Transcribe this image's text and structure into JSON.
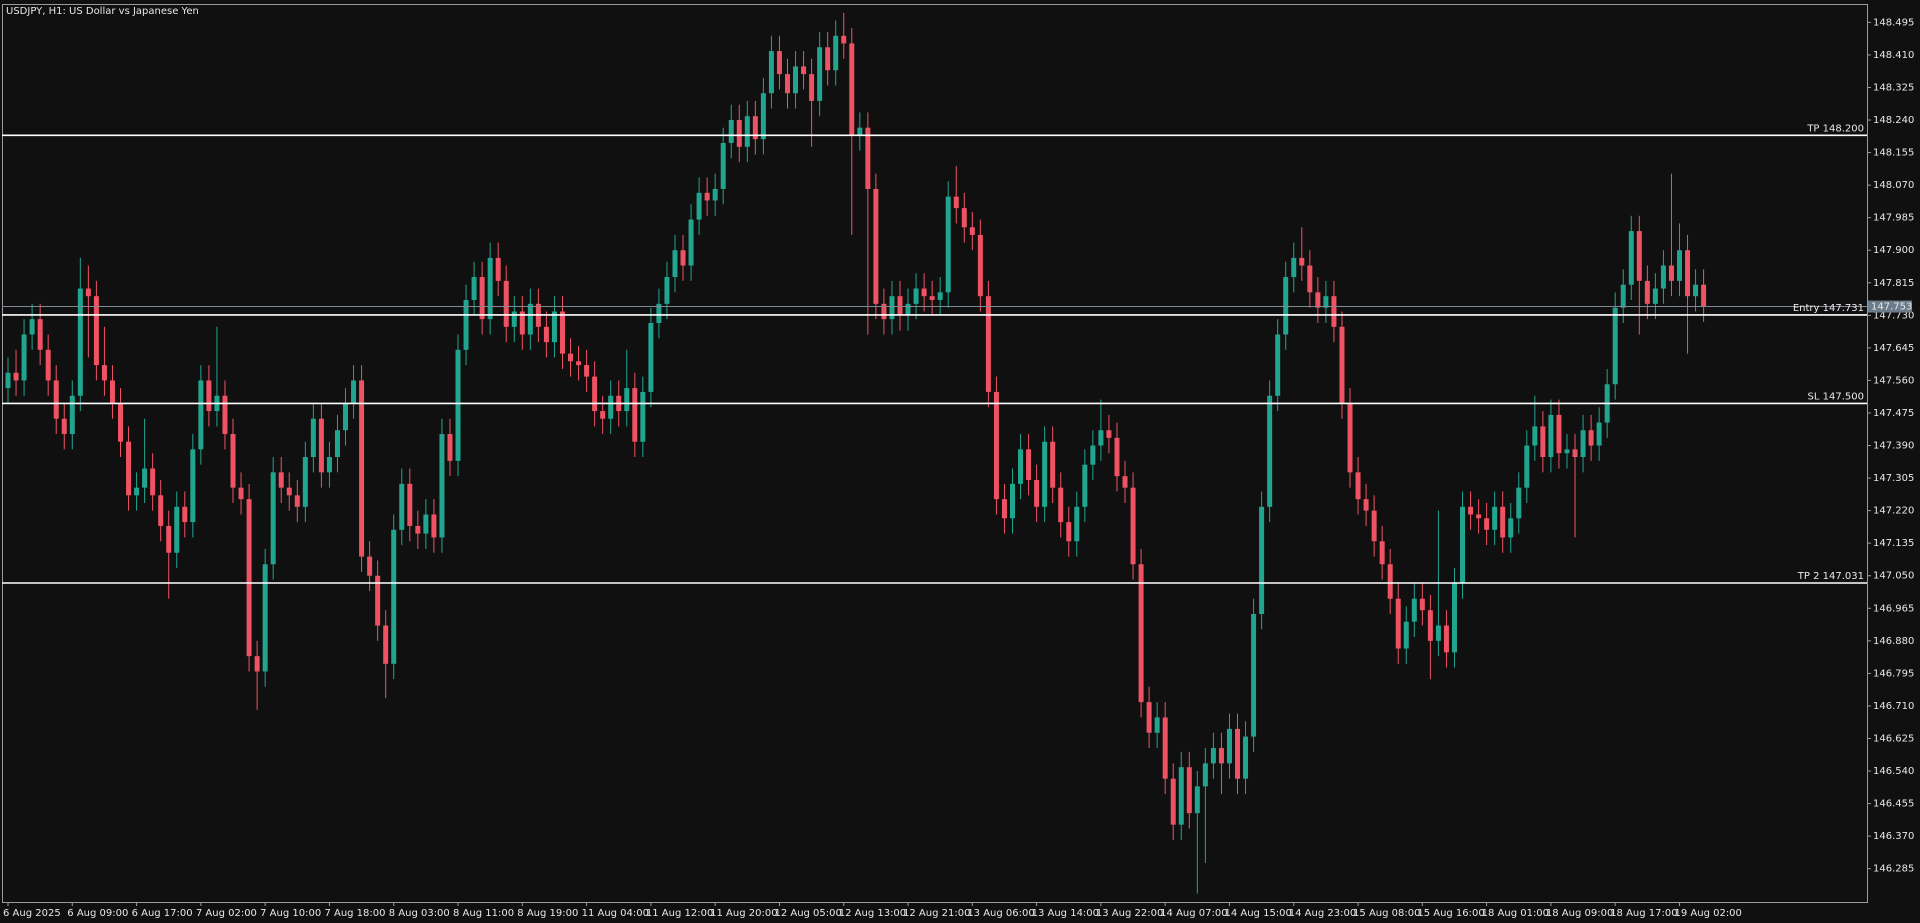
{
  "chart_data": {
    "type": "candlestick",
    "title": "USDJPY, H1:  US Dollar vs Japanese Yen",
    "up_color": "#22a58f",
    "down_color": "#ef5363",
    "ylim": [
      146.198,
      148.543
    ],
    "yticks": [
      148.495,
      {
        "value": 148.41,
        "label": "148.410"
      },
      148.325,
      {
        "value": 148.24,
        "label": "148.240"
      },
      148.155,
      {
        "value": 148.07,
        "label": "148.070"
      },
      147.985,
      {
        "value": 147.9,
        "label": "147.900"
      },
      147.815,
      {
        "value": 147.73,
        "label": "147.730"
      },
      147.645,
      {
        "value": 147.56,
        "label": "147.560"
      },
      147.475,
      {
        "value": 147.39,
        "label": "147.390"
      },
      147.305,
      {
        "value": 147.22,
        "label": "147.220"
      },
      147.135,
      {
        "value": 147.05,
        "label": "147.050"
      },
      146.965,
      {
        "value": 146.88,
        "label": "146.880"
      },
      146.795,
      {
        "value": 146.71,
        "label": "146.710"
      },
      146.625,
      {
        "value": 146.54,
        "label": "146.540"
      },
      146.455,
      {
        "value": 146.37,
        "label": "146.370"
      },
      146.285
    ],
    "grid": false,
    "levels": [
      {
        "label": "TP 148.200",
        "value": 148.2
      },
      {
        "label": "Entry 147.731",
        "value": 147.731
      },
      {
        "label": "SL 147.500",
        "value": 147.5
      },
      {
        "label": "TP 2 147.031",
        "value": 147.031
      }
    ],
    "current_price": 147.753,
    "categories": [
      "6 Aug 2025",
      null,
      null,
      null,
      null,
      null,
      null,
      null,
      "6 Aug 09:00",
      null,
      null,
      null,
      null,
      null,
      null,
      null,
      "6 Aug 17:00",
      null,
      null,
      null,
      null,
      null,
      null,
      null,
      "7 Aug 02:00",
      null,
      null,
      null,
      null,
      null,
      null,
      null,
      "7 Aug 10:00",
      null,
      null,
      null,
      null,
      null,
      null,
      null,
      "7 Aug 18:00",
      null,
      null,
      null,
      null,
      null,
      null,
      null,
      "8 Aug 03:00",
      null,
      null,
      null,
      null,
      null,
      null,
      null,
      "8 Aug 11:00",
      null,
      null,
      null,
      null,
      null,
      null,
      null,
      "8 Aug 19:00",
      null,
      null,
      null,
      null,
      null,
      null,
      null,
      "11 Aug 04:00",
      null,
      null,
      null,
      null,
      null,
      null,
      null,
      "11 Aug 12:00",
      null,
      null,
      null,
      null,
      null,
      null,
      null,
      "11 Aug 20:00",
      null,
      null,
      null,
      null,
      null,
      null,
      null,
      "12 Aug 05:00",
      null,
      null,
      null,
      null,
      null,
      null,
      null,
      "12 Aug 13:00",
      null,
      null,
      null,
      null,
      null,
      null,
      null,
      "12 Aug 21:00",
      null,
      null,
      null,
      null,
      null,
      null,
      null,
      "13 Aug 06:00",
      null,
      null,
      null,
      null,
      null,
      null,
      null,
      "13 Aug 14:00",
      null,
      null,
      null,
      null,
      null,
      null,
      null,
      "13 Aug 22:00",
      null,
      null,
      null,
      null,
      null,
      null,
      null,
      "14 Aug 07:00",
      null,
      null,
      null,
      null,
      null,
      null,
      null,
      "14 Aug 15:00",
      null,
      null,
      null,
      null,
      null,
      null,
      null,
      "14 Aug 23:00",
      null,
      null,
      null,
      null,
      null,
      null,
      null,
      "15 Aug 08:00",
      null,
      null,
      null,
      null,
      null,
      null,
      null,
      "15 Aug 16:00",
      null,
      null,
      null,
      null,
      null,
      null,
      null,
      "18 Aug 01:00",
      null,
      null,
      null,
      null,
      null,
      null,
      null,
      "18 Aug 09:00",
      null,
      null,
      null,
      null,
      null,
      null,
      null,
      "18 Aug 17:00",
      null,
      null,
      null,
      null,
      null,
      null,
      null,
      "19 Aug 02:00",
      null,
      null,
      null
    ],
    "open": [
      147.54,
      147.58,
      147.56,
      147.68,
      147.72,
      147.64,
      147.56,
      147.46,
      147.42,
      147.52,
      147.8,
      147.78,
      147.6,
      147.56,
      147.5,
      147.4,
      147.26,
      147.28,
      147.33,
      147.26,
      147.18,
      147.11,
      147.23,
      147.19,
      147.38,
      147.56,
      147.48,
      147.52,
      147.42,
      147.28,
      147.25,
      146.84,
      146.8,
      147.08,
      147.32,
      147.28,
      147.26,
      147.23,
      147.36,
      147.46,
      147.32,
      147.36,
      147.43,
      147.5,
      147.56,
      147.1,
      147.05,
      146.92,
      146.82,
      147.17,
      147.29,
      147.18,
      147.16,
      147.21,
      147.15,
      147.42,
      147.35,
      147.64,
      147.77,
      147.83,
      147.72,
      147.88,
      147.82,
      147.7,
      147.74,
      147.68,
      147.76,
      147.7,
      147.66,
      147.74,
      147.63,
      147.61,
      147.6,
      147.57,
      147.48,
      147.46,
      147.52,
      147.48,
      147.54,
      147.4,
      147.53,
      147.71,
      147.76,
      147.83,
      147.9,
      147.86,
      147.98,
      148.05,
      148.03,
      148.06,
      148.18,
      148.24,
      148.17,
      148.25,
      148.19,
      148.31,
      148.42,
      148.36,
      148.31,
      148.38,
      148.36,
      148.29,
      148.43,
      148.37,
      148.46,
      148.44,
      148.2,
      148.22,
      148.06,
      147.76,
      147.72,
      147.78,
      147.73,
      147.76,
      147.8,
      147.78,
      147.77,
      147.79,
      148.04,
      148.01,
      147.96,
      147.94,
      147.78,
      147.53,
      147.25,
      147.2,
      147.29,
      147.38,
      147.3,
      147.23,
      147.4,
      147.28,
      147.19,
      147.14,
      147.23,
      147.34,
      147.39,
      147.43,
      147.41,
      147.31,
      147.28,
      147.08,
      146.72,
      146.64,
      146.68,
      146.52,
      146.4,
      146.55,
      146.43,
      146.5,
      146.56,
      146.6,
      146.56,
      146.65,
      146.52,
      146.63,
      146.95,
      147.23,
      147.52,
      147.68,
      147.83,
      147.88,
      147.86,
      147.79,
      147.75,
      147.78,
      147.7,
      147.5,
      147.32,
      147.25,
      147.22,
      147.14,
      147.08,
      146.99,
      146.86,
      146.93,
      146.99,
      146.96,
      146.88,
      146.92,
      146.85,
      147.03,
      147.23,
      147.21,
      147.2,
      147.17,
      147.23,
      147.15,
      147.2,
      147.28,
      147.39,
      147.44,
      147.36,
      147.47,
      147.37,
      147.38,
      147.36,
      147.43,
      147.39,
      147.45,
      147.55,
      147.75,
      147.81,
      147.95,
      147.82,
      147.76,
      147.8,
      147.86,
      147.82,
      147.9,
      147.78,
      147.81
    ],
    "high": [
      147.62,
      147.64,
      147.72,
      147.76,
      147.76,
      147.68,
      147.6,
      147.5,
      147.56,
      147.88,
      147.86,
      147.82,
      147.7,
      147.6,
      147.54,
      147.44,
      147.32,
      147.46,
      147.37,
      147.3,
      147.22,
      147.27,
      147.27,
      147.42,
      147.6,
      147.6,
      147.7,
      147.56,
      147.46,
      147.32,
      147.29,
      146.88,
      147.12,
      147.36,
      147.36,
      147.32,
      147.3,
      147.4,
      147.5,
      147.5,
      147.4,
      147.47,
      147.54,
      147.6,
      147.6,
      147.14,
      147.09,
      146.96,
      147.21,
      147.33,
      147.33,
      147.22,
      147.25,
      147.25,
      147.46,
      147.46,
      147.68,
      147.81,
      147.87,
      147.87,
      147.92,
      147.92,
      147.86,
      147.78,
      147.78,
      147.8,
      147.8,
      147.74,
      147.78,
      147.78,
      147.67,
      147.65,
      147.64,
      147.61,
      147.52,
      147.56,
      147.56,
      147.64,
      147.58,
      147.57,
      147.75,
      147.8,
      147.87,
      147.94,
      147.94,
      148.02,
      148.09,
      148.09,
      148.1,
      148.22,
      148.28,
      148.28,
      148.29,
      148.29,
      148.35,
      148.46,
      148.46,
      148.4,
      148.42,
      148.42,
      148.4,
      148.47,
      148.47,
      148.5,
      148.52,
      148.48,
      148.26,
      148.26,
      148.1,
      147.8,
      147.82,
      147.82,
      147.8,
      147.84,
      147.84,
      147.82,
      147.83,
      148.08,
      148.12,
      148.05,
      148,
      147.98,
      147.82,
      147.57,
      147.29,
      147.33,
      147.42,
      147.42,
      147.34,
      147.44,
      147.44,
      147.32,
      147.23,
      147.27,
      147.38,
      147.43,
      147.51,
      147.47,
      147.45,
      147.35,
      147.32,
      147.12,
      146.76,
      146.72,
      146.72,
      146.56,
      146.59,
      146.59,
      146.54,
      146.6,
      146.64,
      146.64,
      146.69,
      146.69,
      146.67,
      146.99,
      147.27,
      147.56,
      147.72,
      147.87,
      147.92,
      147.96,
      147.9,
      147.83,
      147.82,
      147.82,
      147.74,
      147.54,
      147.36,
      147.29,
      147.26,
      147.18,
      147.12,
      147.03,
      146.97,
      147.03,
      147.03,
      147,
      147.22,
      146.96,
      147.07,
      147.27,
      147.27,
      147.25,
      147.24,
      147.27,
      147.27,
      147.24,
      147.32,
      147.43,
      147.52,
      147.48,
      147.51,
      147.51,
      147.42,
      147.42,
      147.47,
      147.47,
      147.49,
      147.59,
      147.79,
      147.85,
      147.99,
      147.99,
      147.86,
      147.84,
      147.9,
      148.1,
      147.97,
      147.94,
      147.85,
      147.85
    ],
    "low": [
      147.5,
      147.52,
      147.52,
      147.64,
      147.6,
      147.52,
      147.42,
      147.38,
      147.38,
      147.48,
      147.62,
      147.56,
      147.52,
      147.46,
      147.36,
      147.22,
      147.22,
      147.24,
      147.22,
      147.14,
      146.99,
      147.07,
      147.15,
      147.15,
      147.34,
      147.44,
      147.44,
      147.38,
      147.24,
      147.21,
      146.8,
      146.7,
      146.76,
      147.04,
      147.24,
      147.22,
      147.19,
      147.19,
      147.32,
      147.28,
      147.28,
      147.32,
      147.39,
      147.46,
      147.06,
      147.01,
      146.88,
      146.73,
      146.78,
      147.13,
      147.14,
      147.12,
      147.12,
      147.11,
      147.11,
      147.31,
      147.31,
      147.6,
      147.73,
      147.68,
      147.68,
      147.78,
      147.66,
      147.66,
      147.64,
      147.64,
      147.66,
      147.62,
      147.62,
      147.59,
      147.57,
      147.56,
      147.53,
      147.44,
      147.42,
      147.42,
      147.44,
      147.44,
      147.36,
      147.36,
      147.49,
      147.67,
      147.72,
      147.79,
      147.82,
      147.82,
      147.94,
      147.99,
      147.99,
      148.02,
      148.14,
      148.13,
      148.13,
      148.15,
      148.15,
      148.27,
      148.32,
      148.27,
      148.27,
      148.32,
      148.17,
      148.25,
      148.33,
      148.33,
      148.4,
      147.94,
      148.16,
      147.68,
      147.72,
      147.68,
      147.68,
      147.69,
      147.69,
      147.72,
      147.74,
      147.73,
      147.73,
      147.75,
      147.97,
      147.92,
      147.9,
      147.74,
      147.49,
      147.21,
      147.16,
      147.16,
      147.25,
      147.26,
      147.19,
      147.19,
      147.24,
      147.15,
      147.1,
      147.1,
      147.19,
      147.3,
      147.35,
      147.37,
      147.27,
      147.24,
      147.04,
      146.68,
      146.6,
      146.6,
      146.48,
      146.36,
      146.36,
      146.39,
      146.22,
      146.3,
      146.52,
      146.48,
      146.52,
      146.48,
      146.48,
      146.59,
      146.91,
      147.19,
      147.48,
      147.64,
      147.79,
      147.82,
      147.75,
      147.71,
      147.71,
      147.66,
      147.46,
      147.28,
      147.21,
      147.18,
      147.1,
      147.04,
      146.95,
      146.82,
      146.82,
      146.89,
      146.92,
      146.78,
      146.84,
      146.81,
      146.81,
      146.99,
      147.17,
      147.16,
      147.13,
      147.13,
      147.11,
      147.11,
      147.16,
      147.24,
      147.35,
      147.32,
      147.32,
      147.33,
      147.33,
      147.15,
      147.32,
      147.35,
      147.35,
      147.41,
      147.51,
      147.71,
      147.77,
      147.68,
      147.72,
      147.72,
      147.76,
      147.78,
      147.78,
      147.63,
      147.74,
      147.713
    ],
    "close": [
      147.58,
      147.56,
      147.68,
      147.72,
      147.64,
      147.56,
      147.46,
      147.42,
      147.52,
      147.8,
      147.78,
      147.6,
      147.56,
      147.5,
      147.4,
      147.26,
      147.28,
      147.33,
      147.26,
      147.18,
      147.11,
      147.23,
      147.19,
      147.38,
      147.56,
      147.48,
      147.52,
      147.42,
      147.28,
      147.25,
      146.84,
      146.8,
      147.08,
      147.32,
      147.28,
      147.26,
      147.23,
      147.36,
      147.46,
      147.32,
      147.36,
      147.43,
      147.5,
      147.56,
      147.1,
      147.05,
      146.92,
      146.82,
      147.17,
      147.29,
      147.18,
      147.16,
      147.21,
      147.15,
      147.42,
      147.35,
      147.64,
      147.77,
      147.83,
      147.72,
      147.88,
      147.82,
      147.7,
      147.74,
      147.68,
      147.76,
      147.7,
      147.66,
      147.74,
      147.63,
      147.61,
      147.6,
      147.57,
      147.48,
      147.46,
      147.52,
      147.48,
      147.54,
      147.4,
      147.53,
      147.71,
      147.76,
      147.83,
      147.9,
      147.86,
      147.98,
      148.05,
      148.03,
      148.06,
      148.18,
      148.24,
      148.17,
      148.25,
      148.19,
      148.31,
      148.42,
      148.36,
      148.31,
      148.38,
      148.36,
      148.29,
      148.43,
      148.37,
      148.46,
      148.44,
      148.2,
      148.22,
      148.06,
      147.76,
      147.72,
      147.78,
      147.73,
      147.76,
      147.8,
      147.78,
      147.77,
      147.79,
      148.04,
      148.01,
      147.96,
      147.94,
      147.78,
      147.53,
      147.25,
      147.2,
      147.29,
      147.38,
      147.3,
      147.23,
      147.4,
      147.28,
      147.19,
      147.14,
      147.23,
      147.34,
      147.39,
      147.43,
      147.41,
      147.31,
      147.28,
      147.08,
      146.72,
      146.64,
      146.68,
      146.52,
      146.4,
      146.55,
      146.43,
      146.5,
      146.56,
      146.6,
      146.56,
      146.65,
      146.52,
      146.63,
      146.95,
      147.23,
      147.52,
      147.68,
      147.83,
      147.88,
      147.86,
      147.79,
      147.75,
      147.78,
      147.7,
      147.5,
      147.32,
      147.25,
      147.22,
      147.14,
      147.08,
      146.99,
      146.86,
      146.93,
      146.99,
      146.96,
      146.88,
      146.92,
      146.85,
      147.03,
      147.23,
      147.21,
      147.2,
      147.17,
      147.23,
      147.15,
      147.2,
      147.28,
      147.39,
      147.44,
      147.36,
      147.47,
      147.37,
      147.38,
      147.36,
      147.43,
      147.39,
      147.45,
      147.55,
      147.75,
      147.81,
      147.95,
      147.82,
      147.76,
      147.8,
      147.86,
      147.82,
      147.9,
      147.78,
      147.81,
      147.753
    ]
  }
}
